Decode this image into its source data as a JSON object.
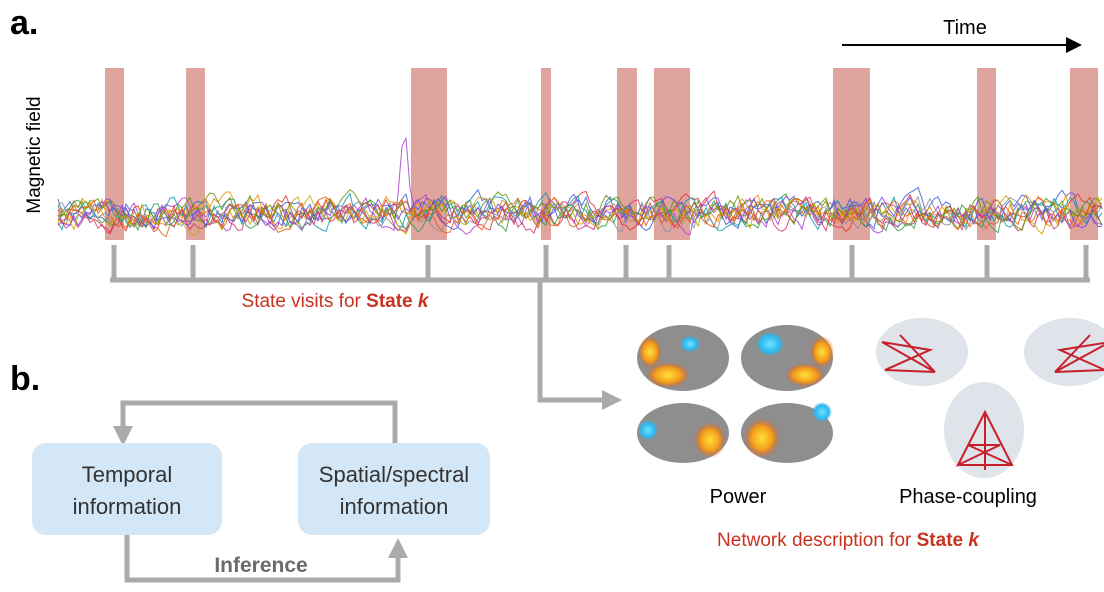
{
  "panel_a": {
    "label": "a.",
    "time_label": "Time",
    "y_label": "Magnetic field",
    "state_visits": {
      "text": "State visits for",
      "state": "State",
      "k": "k"
    }
  },
  "panel_b": {
    "label": "b.",
    "temporal": {
      "line1": "Temporal",
      "line2": "information"
    },
    "spatial": {
      "line1": "Spatial/spectral",
      "line2": "information"
    },
    "inference": "Inference"
  },
  "network": {
    "power": "Power",
    "phase_coupling": "Phase-coupling",
    "description": {
      "text": "Network description for",
      "state": "State",
      "k": "k"
    }
  }
}
